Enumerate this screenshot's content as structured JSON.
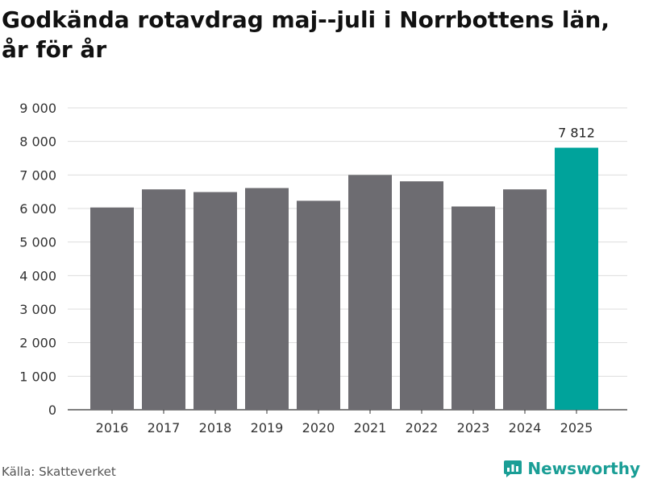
{
  "header": {
    "title": "Godkända rotavdrag maj--juli i Norrbottens län, år för år"
  },
  "footer": {
    "source": "Källa: Skatteverket",
    "brand": "Newsworthy"
  },
  "colors": {
    "bar": "#6d6c71",
    "highlight": "#00a39b",
    "grid": "#dddddd",
    "brand": "#1a9e96"
  },
  "chart_data": {
    "type": "bar",
    "title": "Godkända rotavdrag maj--juli i Norrbottens län, år för år",
    "xlabel": "",
    "ylabel": "",
    "categories": [
      "2016",
      "2017",
      "2018",
      "2019",
      "2020",
      "2021",
      "2022",
      "2023",
      "2024",
      "2025"
    ],
    "values": [
      6030,
      6570,
      6490,
      6610,
      6230,
      7000,
      6810,
      6060,
      6570,
      7812
    ],
    "highlight_index": 9,
    "data_labels": [
      {
        "index": 9,
        "text": "7 812"
      }
    ],
    "ylim": [
      0,
      9000
    ],
    "yticks": [
      0,
      1000,
      2000,
      3000,
      4000,
      5000,
      6000,
      7000,
      8000,
      9000
    ],
    "ytick_labels": [
      "0",
      "1 000",
      "2 000",
      "3 000",
      "4 000",
      "5 000",
      "6 000",
      "7 000",
      "8 000",
      "9 000"
    ],
    "grid": true,
    "legend": "none"
  }
}
